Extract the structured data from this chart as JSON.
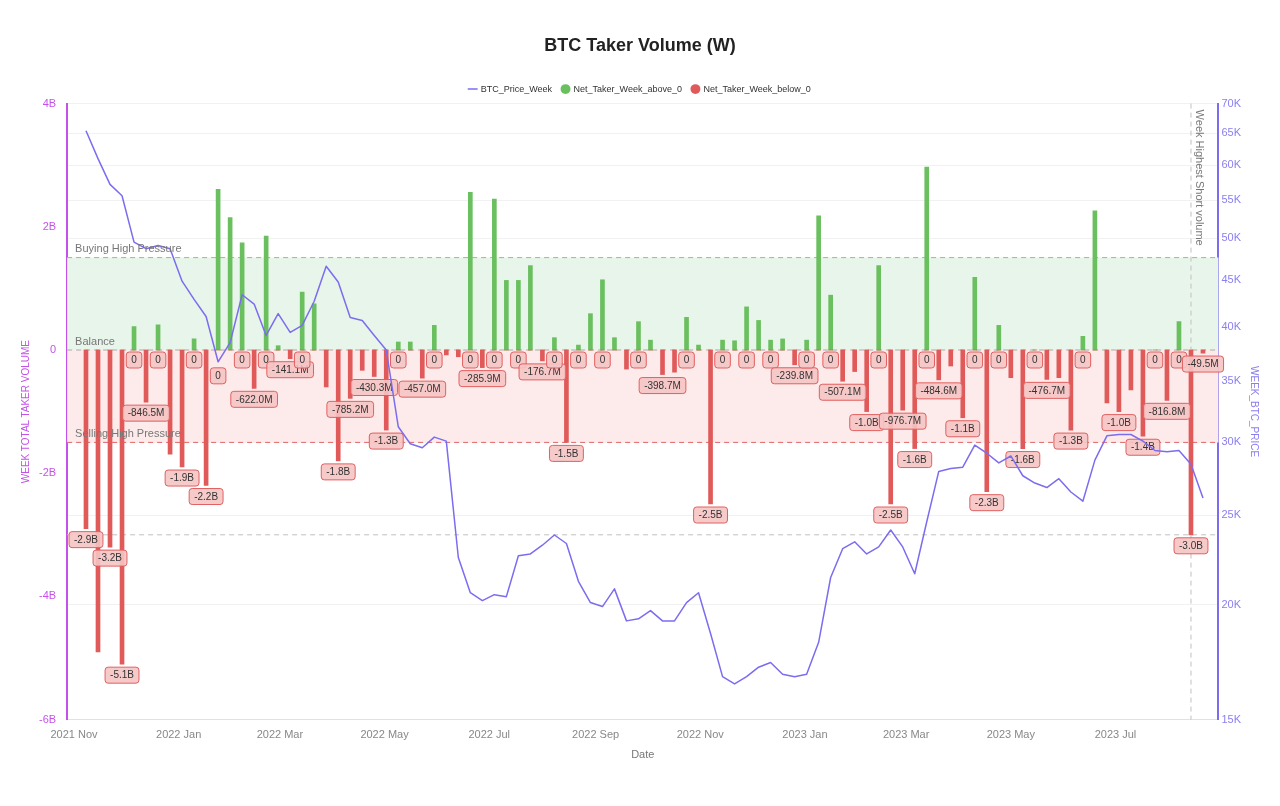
{
  "chart_data": {
    "type": "bar",
    "title": "BTC Taker Volume (W)",
    "xlabel": "Date",
    "ylabel": "WEEK TOTAL TAKER VOLUME",
    "y2label": "WEEK_BTC_PRICE",
    "x": [
      "2021-11-08",
      "2021-11-15",
      "2021-11-22",
      "2021-11-29",
      "2021-12-06",
      "2021-12-13",
      "2021-12-20",
      "2021-12-27",
      "2022-01-03",
      "2022-01-10",
      "2022-01-17",
      "2022-01-24",
      "2022-01-31",
      "2022-02-07",
      "2022-02-14",
      "2022-02-21",
      "2022-02-28",
      "2022-03-07",
      "2022-03-14",
      "2022-03-21",
      "2022-03-28",
      "2022-04-04",
      "2022-04-11",
      "2022-04-18",
      "2022-04-25",
      "2022-05-02",
      "2022-05-09",
      "2022-05-16",
      "2022-05-23",
      "2022-05-30",
      "2022-06-06",
      "2022-06-13",
      "2022-06-20",
      "2022-06-27",
      "2022-07-04",
      "2022-07-11",
      "2022-07-18",
      "2022-07-25",
      "2022-08-01",
      "2022-08-08",
      "2022-08-15",
      "2022-08-22",
      "2022-08-29",
      "2022-09-05",
      "2022-09-12",
      "2022-09-19",
      "2022-09-26",
      "2022-10-03",
      "2022-10-10",
      "2022-10-17",
      "2022-10-24",
      "2022-10-31",
      "2022-11-07",
      "2022-11-14",
      "2022-11-21",
      "2022-11-28",
      "2022-12-05",
      "2022-12-12",
      "2022-12-19",
      "2022-12-26",
      "2023-01-02",
      "2023-01-09",
      "2023-01-16",
      "2023-01-23",
      "2023-01-30",
      "2023-02-06",
      "2023-02-13",
      "2023-02-20",
      "2023-02-27",
      "2023-03-06",
      "2023-03-13",
      "2023-03-20",
      "2023-03-27",
      "2023-04-03",
      "2023-04-10",
      "2023-04-17",
      "2023-04-24",
      "2023-05-01",
      "2023-05-08",
      "2023-05-15",
      "2023-05-22",
      "2023-05-29",
      "2023-06-05",
      "2023-06-12",
      "2023-06-19",
      "2023-06-26",
      "2023-07-03",
      "2023-07-10",
      "2023-07-17",
      "2023-07-24",
      "2023-07-31",
      "2023-08-07",
      "2023-08-14",
      "2023-08-21"
    ],
    "series": [
      {
        "name": "BTC_Price_Week",
        "type": "line",
        "axis": "y2",
        "color": "#7b6cf0",
        "values": [
          65.4,
          61.0,
          57.2,
          55.6,
          49.5,
          48.7,
          49.1,
          48.7,
          44.9,
          42.9,
          41.1,
          36.7,
          38.5,
          43.4,
          42.4,
          39.2,
          41.4,
          39.5,
          40.2,
          42.7,
          46.6,
          44.8,
          41.0,
          40.7,
          39.2,
          37.8,
          31.2,
          29.9,
          29.6,
          30.4,
          30.1,
          22.5,
          20.6,
          20.2,
          20.5,
          20.4,
          22.6,
          22.7,
          23.2,
          23.8,
          23.3,
          21.2,
          20.1,
          19.9,
          20.8,
          19.2,
          19.3,
          19.7,
          19.2,
          19.2,
          20.1,
          20.6,
          18.6,
          16.7,
          16.4,
          16.7,
          17.1,
          17.3,
          16.8,
          16.7,
          16.8,
          18.2,
          21.4,
          23.0,
          23.4,
          22.7,
          23.1,
          24.1,
          23.1,
          21.6,
          24.6,
          27.9,
          28.1,
          28.2,
          29.8,
          29.2,
          28.5,
          29.0,
          27.6,
          27.1,
          26.8,
          27.4,
          26.5,
          25.9,
          28.7,
          30.5,
          30.6,
          30.6,
          30.1,
          29.4,
          29.3,
          29.4,
          28.4,
          26.1
        ]
      },
      {
        "name": "Net_Taker_Week_above_0",
        "color": "#6abf5e",
        "values": [
          0,
          0,
          0,
          0,
          380000000.0,
          0,
          410000000.0,
          0,
          0,
          180000000.0,
          0,
          2610000000.0,
          2150000000.0,
          1740000000.0,
          0,
          1850000000.0,
          70000000.0,
          0,
          940000000.0,
          750000000.0,
          0,
          0,
          0,
          0,
          0,
          0,
          130000000.0,
          130000000.0,
          0,
          400000000.0,
          0,
          0,
          2560000000.0,
          0,
          2450000000.0,
          1130000000.0,
          1130000000.0,
          1370000000.0,
          0,
          200000000.0,
          0,
          80000000.0,
          590000000.0,
          1140000000.0,
          200000000.0,
          0,
          460000000.0,
          160000000.0,
          0,
          0,
          530000000.0,
          80000000.0,
          0,
          160000000.0,
          150000000.0,
          700000000.0,
          480000000.0,
          160000000.0,
          180000000.0,
          0,
          160000000.0,
          2180000000.0,
          890000000.0,
          0,
          0,
          0,
          1370000000.0,
          0,
          0,
          0,
          2970000000.0,
          0,
          0,
          0,
          1180000000.0,
          0,
          400000000.0,
          0,
          0,
          0,
          0,
          0,
          0,
          220000000.0,
          2260000000.0,
          0,
          0,
          0,
          0,
          0,
          0,
          460000000.0,
          0,
          0
        ]
      },
      {
        "name": "Net_Taker_Week_below_0",
        "color": "#e05a5a",
        "values": [
          -2900000000.0,
          -4900000000.0,
          -3200000000.0,
          -5100000000.0,
          0,
          -846500000.0,
          0,
          -1690000000.0,
          -1900000000.0,
          0,
          -2200000000.0,
          0,
          0,
          0,
          -622000000.0,
          0,
          0,
          -141100000.0,
          0,
          0,
          -600000000.0,
          -1800000000.0,
          -785200000.0,
          -330000000.0,
          -430300000.0,
          -1300000000.0,
          0,
          0,
          -457000000.0,
          0,
          -80000000.0,
          -110000000.0,
          0,
          -285900000.0,
          0,
          0,
          0,
          0,
          -176700000.0,
          0,
          -1500000000.0,
          0,
          0,
          0,
          0,
          -310000000.0,
          0,
          0,
          -398700000.0,
          -360000000.0,
          0,
          0,
          -2500000000.0,
          0,
          0,
          0,
          0,
          0,
          0,
          -239800000.0,
          0,
          0,
          0,
          -507100000.0,
          -350000000.0,
          -1000000000.0,
          0,
          -2500000000.0,
          -976700000.0,
          -1600000000.0,
          0,
          -484600000.0,
          -260000000.0,
          -1100000000.0,
          0,
          -2300000000.0,
          0,
          -450000000.0,
          -1600000000.0,
          0,
          -476700000.0,
          -450000000.0,
          -1300000000.0,
          0,
          0,
          -860000000.0,
          -1000000000.0,
          -650000000.0,
          -1400000000.0,
          0,
          -816800000.0,
          0,
          -3000000000.0,
          -49500000.0
        ],
        "value_labels": [
          "-2.9B",
          null,
          "-3.2B",
          "-5.1B",
          "0",
          "-846.5M",
          "0",
          null,
          "-1.9B",
          "0",
          "-2.2B",
          "0",
          null,
          "0",
          "-622.0M",
          "0",
          null,
          "-141.1M",
          "0",
          null,
          null,
          "-1.8B",
          "-785.2M",
          null,
          "-430.3M",
          "-1.3B",
          "0",
          null,
          "-457.0M",
          "0",
          null,
          null,
          "0",
          "-285.9M",
          "0",
          null,
          "0",
          null,
          "-176.7M",
          "0",
          "-1.5B",
          "0",
          null,
          "0",
          null,
          null,
          "0",
          null,
          "-398.7M",
          null,
          "0",
          null,
          "-2.5B",
          "0",
          null,
          "0",
          null,
          "0",
          null,
          "-239.8M",
          "0",
          null,
          "0",
          "-507.1M",
          null,
          "-1.0B",
          "0",
          "-2.5B",
          "-976.7M",
          "-1.6B",
          "0",
          "-484.6M",
          null,
          "-1.1B",
          "0",
          "-2.3B",
          "0",
          null,
          "-1.6B",
          "0",
          "-476.7M",
          null,
          "-1.3B",
          "0",
          null,
          null,
          "-1.0B",
          null,
          "-1.4B",
          "0",
          "-816.8M",
          "0",
          "-3.0B",
          "-49.5M"
        ]
      }
    ],
    "xlim": [
      "2021-10-28",
      "2023-08-30"
    ],
    "xticks": [
      {
        "value": "2021-11-01",
        "label": "2021 Nov"
      },
      {
        "value": "2022-01-01",
        "label": "2022 Jan"
      },
      {
        "value": "2022-03-01",
        "label": "2022 Mar"
      },
      {
        "value": "2022-05-01",
        "label": "2022 May"
      },
      {
        "value": "2022-07-01",
        "label": "2022 Jul"
      },
      {
        "value": "2022-09-01",
        "label": "2022 Sep"
      },
      {
        "value": "2022-11-01",
        "label": "2022 Nov"
      },
      {
        "value": "2023-01-01",
        "label": "2023 Jan"
      },
      {
        "value": "2023-03-01",
        "label": "2023 Mar"
      },
      {
        "value": "2023-05-01",
        "label": "2023 May"
      },
      {
        "value": "2023-07-01",
        "label": "2023 Jul"
      }
    ],
    "ylim": [
      -6000000000.0,
      4000000000.0
    ],
    "yticks": [
      {
        "value": -6000000000.0,
        "label": "-6B"
      },
      {
        "value": -4000000000.0,
        "label": "-4B"
      },
      {
        "value": -2000000000.0,
        "label": "-2B"
      },
      0,
      {
        "value": 2000000000.0,
        "label": "2B"
      },
      {
        "value": 4000000000.0,
        "label": "4B"
      }
    ],
    "y2lim": [
      15,
      70
    ],
    "y2ticks": [
      {
        "value": 15,
        "label": "15K"
      },
      {
        "value": 20,
        "label": "20K"
      },
      {
        "value": 25,
        "label": "25K"
      },
      {
        "value": 30,
        "label": "30K"
      },
      {
        "value": 35,
        "label": "35K"
      },
      {
        "value": 40,
        "label": "40K"
      },
      {
        "value": 45,
        "label": "45K"
      },
      {
        "value": 50,
        "label": "50K"
      },
      {
        "value": 55,
        "label": "55K"
      },
      {
        "value": 60,
        "label": "60K"
      },
      {
        "value": 65,
        "label": "65K"
      },
      {
        "value": 70,
        "label": "70K"
      }
    ],
    "log": "y2",
    "grid": "y",
    "legend": "top",
    "marker": "none",
    "bands": [
      {
        "axis": "y",
        "from": 0,
        "to": 1500000000.0,
        "color": "#e8f5ea"
      },
      {
        "axis": "y",
        "from": -1500000000.0,
        "to": 0,
        "color": "#fcebea"
      }
    ],
    "ref_lines": [
      {
        "axis": "y",
        "value": 1500000000.0,
        "label": "Buying High Pressure",
        "color": "#7ccf6e",
        "line_style": "dashed"
      },
      {
        "axis": "y",
        "value": 0,
        "label": "Balance",
        "color": "#aaaaaa",
        "line_style": "dashed"
      },
      {
        "axis": "y",
        "value": -1500000000.0,
        "label": "Selling High Pressure",
        "color": "#e06666",
        "line_style": "dashed"
      },
      {
        "axis": "y",
        "value": -3000000000.0,
        "color": "#c0c0c0",
        "line_style": "dashed"
      },
      {
        "axis": "x",
        "value": "2023-08-14",
        "label": "Week Highest Short volume",
        "color": "#c0c0c0",
        "line_style": "dashed"
      }
    ]
  }
}
